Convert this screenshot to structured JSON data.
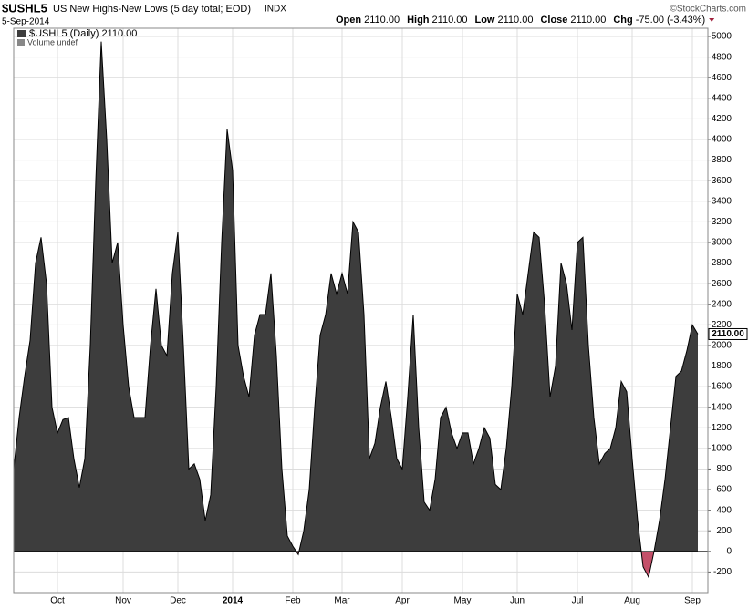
{
  "chart_data": {
    "type": "area",
    "symbol": "$USHL5",
    "title": "US New Highs-New Lows (5 day total; EOD)",
    "exchange": "INDX",
    "date": "5-Sep-2014",
    "ohlc": [
      {
        "label": "Open",
        "value": "2110.00"
      },
      {
        "label": "High",
        "value": "2110.00"
      },
      {
        "label": "Low",
        "value": "2110.00"
      },
      {
        "label": "Close",
        "value": "2110.00"
      },
      {
        "label": "Chg",
        "value": "-75.00 (-3.43%)"
      }
    ],
    "credit": "©StockCharts.com",
    "legend": [
      "$USHL5 (Daily) 2110.00",
      "Volume undef"
    ],
    "last_value": 2110,
    "last_label": "2110.00",
    "categories": [
      null,
      null,
      null,
      null,
      null,
      null,
      null,
      null,
      "Oct",
      null,
      null,
      null,
      null,
      null,
      null,
      null,
      null,
      null,
      null,
      null,
      "Nov",
      null,
      null,
      null,
      null,
      null,
      null,
      null,
      null,
      null,
      "Dec",
      null,
      null,
      null,
      null,
      null,
      null,
      null,
      null,
      null,
      "2014",
      null,
      null,
      null,
      null,
      null,
      null,
      null,
      null,
      null,
      null,
      "Feb",
      null,
      null,
      null,
      null,
      null,
      null,
      null,
      null,
      "Mar",
      null,
      null,
      null,
      null,
      null,
      null,
      null,
      null,
      null,
      null,
      "Apr",
      null,
      null,
      null,
      null,
      null,
      null,
      null,
      null,
      null,
      null,
      "May",
      null,
      null,
      null,
      null,
      null,
      null,
      null,
      null,
      null,
      "Jun",
      null,
      null,
      null,
      null,
      null,
      null,
      null,
      null,
      null,
      null,
      "Jul",
      null,
      null,
      null,
      null,
      null,
      null,
      null,
      null,
      null,
      "Aug",
      null,
      null,
      null,
      null,
      null,
      null,
      null,
      null,
      null,
      null,
      "Sep",
      null
    ],
    "values": [
      800,
      1300,
      1700,
      2050,
      2800,
      3050,
      2600,
      1400,
      1150,
      1280,
      1300,
      900,
      620,
      900,
      2000,
      3600,
      4950,
      4000,
      2800,
      3000,
      2200,
      1600,
      1300,
      1300,
      1300,
      2000,
      2550,
      2000,
      1900,
      2700,
      3100,
      2000,
      800,
      850,
      700,
      300,
      550,
      1600,
      3000,
      4100,
      3700,
      2000,
      1700,
      1500,
      2100,
      2300,
      2300,
      2700,
      1900,
      800,
      150,
      50,
      -30,
      200,
      600,
      1400,
      2100,
      2300,
      2700,
      2500,
      2700,
      2500,
      3200,
      3100,
      2300,
      900,
      1050,
      1400,
      1650,
      1300,
      900,
      800,
      1500,
      2300,
      1200,
      480,
      400,
      700,
      1300,
      1400,
      1150,
      1000,
      1150,
      1150,
      850,
      1000,
      1200,
      1100,
      650,
      600,
      1000,
      1600,
      2500,
      2300,
      2700,
      3100,
      3050,
      2400,
      1500,
      1800,
      2800,
      2600,
      2150,
      3000,
      3050,
      2000,
      1300,
      850,
      950,
      1000,
      1200,
      1650,
      1550,
      900,
      300,
      -150,
      -250,
      0,
      300,
      700,
      1200,
      1700,
      1750,
      1950,
      2200,
      2110
    ],
    "color": "#3d3d3d",
    "negative_color": "#c4506a",
    "line_color": "#000000",
    "ylim": [
      -400,
      5080
    ],
    "yticks": [
      -200,
      0,
      200,
      400,
      600,
      800,
      1000,
      1200,
      1400,
      1600,
      1800,
      2000,
      2200,
      2400,
      2600,
      2800,
      3000,
      3200,
      3400,
      3600,
      3800,
      4000,
      4200,
      4400,
      4600,
      4800,
      5000
    ],
    "grid": true
  }
}
